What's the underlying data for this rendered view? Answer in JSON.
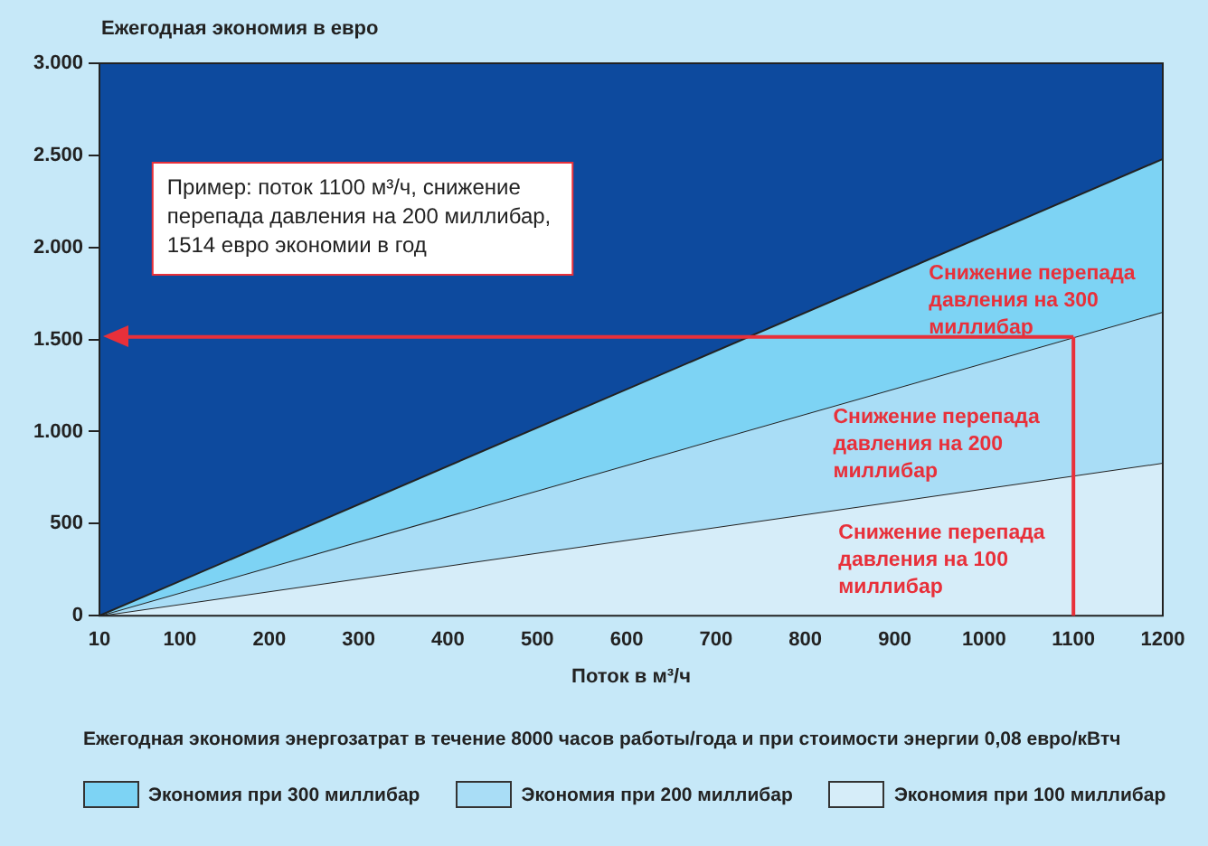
{
  "chart_data": {
    "type": "area",
    "ylabel": "Ежегодная экономия в евро",
    "xlabel": "Поток в м³/ч",
    "x": [
      10,
      1200
    ],
    "series": [
      {
        "name": "Экономия при 300 миллибар",
        "color": "#7dd3f4",
        "values": [
          0,
          2480
        ]
      },
      {
        "name": "Экономия при 200 миллибар",
        "color": "#a9ddf6",
        "values": [
          0,
          1650
        ]
      },
      {
        "name": "Экономия при 100 миллибар",
        "color": "#d6edf9",
        "values": [
          0,
          830
        ]
      }
    ],
    "xlim": [
      10,
      1200
    ],
    "xticks": [
      10,
      100,
      200,
      300,
      400,
      500,
      600,
      700,
      800,
      900,
      1000,
      1100,
      1200
    ],
    "ylim": [
      0,
      3000
    ],
    "yticks": [
      {
        "value": 0,
        "label": "0"
      },
      {
        "value": 500,
        "label": "500"
      },
      {
        "value": 1000,
        "label": "1.000"
      },
      {
        "value": 1500,
        "label": "1.500"
      },
      {
        "value": 2000,
        "label": "2.000"
      },
      {
        "value": 2500,
        "label": "2.500"
      },
      {
        "value": 3000,
        "label": "3.000"
      }
    ],
    "grid": false,
    "legend": "bottom",
    "ref_lines": [
      {
        "axis": "x",
        "value": 1100,
        "color": "#e8303a"
      },
      {
        "axis": "y",
        "value": 1514,
        "color": "#e8303a"
      }
    ],
    "annotations": [
      "Пример: поток 1100 м³/ч, снижение\nперепада давления на 200 миллибар,\n1514 евро экономии в год",
      "Снижение перепада\nдавления на 300\nмиллибар",
      "Снижение перепада\nдавления на 200\nмиллибар",
      "Снижение перепада\nдавления на 100\nмиллибар",
      "Ежегодная экономия энергозатрат в течение 8000 часов работы/года и при стоимости энергии 0,08 евро/кВтч"
    ]
  }
}
